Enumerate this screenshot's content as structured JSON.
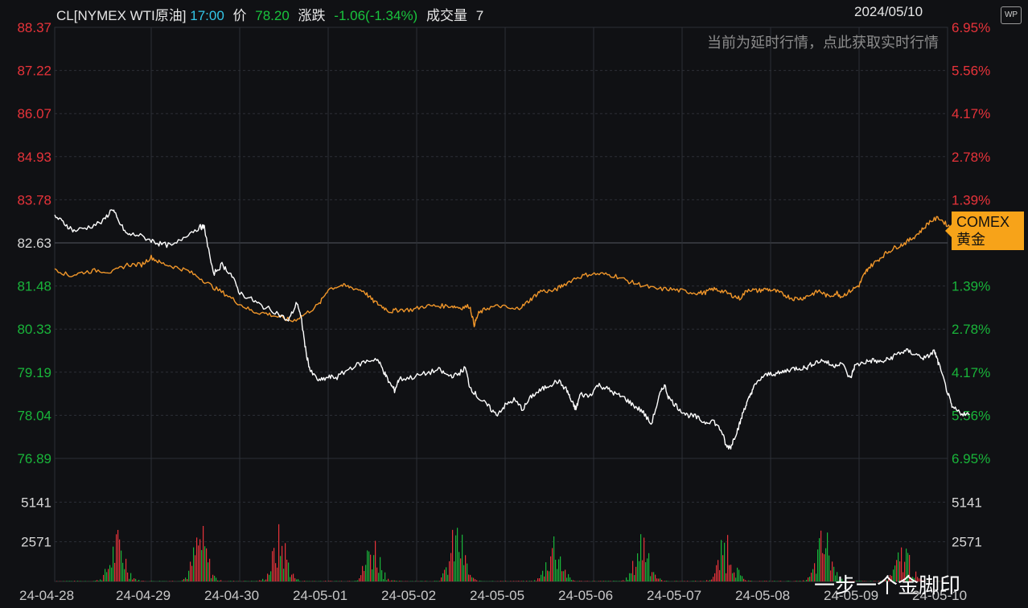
{
  "header": {
    "symbol": "CL[NYMEX WTI原油]",
    "time": "17:00",
    "price_label": "价",
    "price": "78.20",
    "change_label": "涨跌",
    "change": "-1.06(-1.34%)",
    "volume_label": "成交量",
    "volume": "7",
    "date": "2024/05/10",
    "icon": "wp-icon"
  },
  "notice": "当前为延时行情，点此获取实时行情",
  "compare_tag": {
    "line1": "COMEX",
    "line2": "黄金"
  },
  "watermark": "一步一个金脚印",
  "colors": {
    "up": "#e8333a",
    "down": "#19b53a",
    "price_line": "#ffffff",
    "compare_line": "#f0962a",
    "background": "#101114",
    "grid": "#2c2f36"
  },
  "chart_data": {
    "type": "line",
    "grid": true,
    "ylim": [
      76.89,
      88.37
    ],
    "left_ticks": [
      "88.37",
      "87.22",
      "86.07",
      "84.93",
      "83.78",
      "82.63",
      "81.48",
      "80.33",
      "79.19",
      "78.04",
      "76.89"
    ],
    "right_ticks": [
      "6.95%",
      "5.56%",
      "4.17%",
      "2.78%",
      "1.39%",
      "",
      "1.39%",
      "2.78%",
      "4.17%",
      "5.56%",
      "6.95%"
    ],
    "reference_price": 82.63,
    "x_labels": [
      "24-04-28",
      "24-04-29",
      "24-04-30",
      "24-05-01",
      "24-05-02",
      "24-05-05",
      "24-05-06",
      "24-05-07",
      "24-05-08",
      "24-05-09",
      "24-05-10"
    ],
    "series": [
      {
        "name": "CL[NYMEX WTI原油]",
        "color": "#ffffff",
        "points": [
          [
            0,
            83.35
          ],
          [
            0.1,
            83.15
          ],
          [
            0.2,
            82.95
          ],
          [
            0.35,
            83.05
          ],
          [
            0.5,
            83.2
          ],
          [
            0.6,
            83.55
          ],
          [
            0.65,
            83.25
          ],
          [
            0.75,
            82.85
          ],
          [
            0.85,
            82.85
          ],
          [
            1.0,
            82.7
          ],
          [
            1.1,
            82.6
          ],
          [
            1.25,
            82.55
          ],
          [
            1.4,
            82.85
          ],
          [
            1.55,
            83.05
          ],
          [
            1.6,
            83.05
          ],
          [
            1.7,
            81.8
          ],
          [
            1.8,
            82.05
          ],
          [
            1.9,
            81.8
          ],
          [
            2.0,
            81.3
          ],
          [
            2.15,
            81.1
          ],
          [
            2.25,
            80.95
          ],
          [
            2.4,
            80.8
          ],
          [
            2.55,
            80.55
          ],
          [
            2.65,
            81.05
          ],
          [
            2.7,
            80.55
          ],
          [
            2.75,
            79.7
          ],
          [
            2.8,
            79.2
          ],
          [
            2.9,
            78.95
          ],
          [
            3.0,
            79.05
          ],
          [
            3.1,
            79.05
          ],
          [
            3.25,
            79.3
          ],
          [
            3.4,
            79.45
          ],
          [
            3.55,
            79.55
          ],
          [
            3.62,
            79.25
          ],
          [
            3.68,
            78.95
          ],
          [
            3.75,
            78.7
          ],
          [
            3.8,
            79.0
          ],
          [
            3.95,
            79.05
          ],
          [
            4.1,
            79.15
          ],
          [
            4.25,
            79.25
          ],
          [
            4.35,
            79.1
          ],
          [
            4.45,
            79.1
          ],
          [
            4.55,
            79.3
          ],
          [
            4.6,
            78.8
          ],
          [
            4.7,
            78.5
          ],
          [
            4.8,
            78.3
          ],
          [
            4.9,
            78.05
          ],
          [
            5.0,
            78.3
          ],
          [
            5.1,
            78.45
          ],
          [
            5.2,
            78.2
          ],
          [
            5.3,
            78.55
          ],
          [
            5.4,
            78.7
          ],
          [
            5.5,
            78.85
          ],
          [
            5.6,
            78.95
          ],
          [
            5.7,
            78.7
          ],
          [
            5.75,
            78.4
          ],
          [
            5.8,
            78.2
          ],
          [
            5.85,
            78.6
          ],
          [
            5.95,
            78.55
          ],
          [
            6.05,
            78.85
          ],
          [
            6.15,
            78.75
          ],
          [
            6.25,
            78.6
          ],
          [
            6.35,
            78.5
          ],
          [
            6.45,
            78.3
          ],
          [
            6.55,
            78.15
          ],
          [
            6.65,
            77.8
          ],
          [
            6.75,
            78.6
          ],
          [
            6.8,
            78.85
          ],
          [
            6.85,
            78.5
          ],
          [
            6.95,
            78.25
          ],
          [
            7.05,
            78.05
          ],
          [
            7.15,
            78.0
          ],
          [
            7.25,
            77.85
          ],
          [
            7.35,
            77.9
          ],
          [
            7.45,
            77.6
          ],
          [
            7.5,
            77.2
          ],
          [
            7.55,
            77.2
          ],
          [
            7.6,
            77.5
          ],
          [
            7.65,
            77.8
          ],
          [
            7.7,
            78.2
          ],
          [
            7.75,
            78.45
          ],
          [
            7.8,
            78.75
          ],
          [
            7.9,
            79.05
          ],
          [
            8.0,
            79.15
          ],
          [
            8.1,
            79.15
          ],
          [
            8.2,
            79.25
          ],
          [
            8.3,
            79.3
          ],
          [
            8.4,
            79.3
          ],
          [
            8.5,
            79.45
          ],
          [
            8.6,
            79.5
          ],
          [
            8.7,
            79.35
          ],
          [
            8.8,
            79.45
          ],
          [
            8.9,
            79.0
          ],
          [
            8.95,
            79.35
          ],
          [
            9.05,
            79.45
          ],
          [
            9.15,
            79.5
          ],
          [
            9.25,
            79.45
          ],
          [
            9.35,
            79.55
          ],
          [
            9.45,
            79.7
          ],
          [
            9.55,
            79.75
          ],
          [
            9.65,
            79.65
          ],
          [
            9.75,
            79.55
          ],
          [
            9.85,
            79.75
          ],
          [
            9.9,
            79.4
          ],
          [
            10.0,
            78.65
          ],
          [
            10.05,
            78.25
          ],
          [
            10.15,
            78.1
          ],
          [
            10.25,
            78.05
          ]
        ]
      },
      {
        "name": "COMEX黄金",
        "color": "#f0962a",
        "points": [
          [
            0,
            81.95
          ],
          [
            0.15,
            81.75
          ],
          [
            0.3,
            81.85
          ],
          [
            0.45,
            81.9
          ],
          [
            0.6,
            81.85
          ],
          [
            0.75,
            82.05
          ],
          [
            0.9,
            82.05
          ],
          [
            1.0,
            82.25
          ],
          [
            1.1,
            82.1
          ],
          [
            1.25,
            82.0
          ],
          [
            1.4,
            81.9
          ],
          [
            1.55,
            81.7
          ],
          [
            1.7,
            81.45
          ],
          [
            1.85,
            81.25
          ],
          [
            2.0,
            81.0
          ],
          [
            2.15,
            80.8
          ],
          [
            2.3,
            80.75
          ],
          [
            2.45,
            80.65
          ],
          [
            2.6,
            80.55
          ],
          [
            2.75,
            80.75
          ],
          [
            2.9,
            81.0
          ],
          [
            3.0,
            81.4
          ],
          [
            3.15,
            81.5
          ],
          [
            3.25,
            81.45
          ],
          [
            3.4,
            81.35
          ],
          [
            3.5,
            81.1
          ],
          [
            3.6,
            80.95
          ],
          [
            3.7,
            80.8
          ],
          [
            3.8,
            80.85
          ],
          [
            3.95,
            80.85
          ],
          [
            4.1,
            80.95
          ],
          [
            4.25,
            80.95
          ],
          [
            4.4,
            80.95
          ],
          [
            4.5,
            80.9
          ],
          [
            4.6,
            80.95
          ],
          [
            4.65,
            80.45
          ],
          [
            4.7,
            80.75
          ],
          [
            4.8,
            80.9
          ],
          [
            4.95,
            80.95
          ],
          [
            5.1,
            80.85
          ],
          [
            5.2,
            80.95
          ],
          [
            5.3,
            81.15
          ],
          [
            5.4,
            81.35
          ],
          [
            5.55,
            81.35
          ],
          [
            5.65,
            81.5
          ],
          [
            5.8,
            81.7
          ],
          [
            5.95,
            81.8
          ],
          [
            6.1,
            81.8
          ],
          [
            6.25,
            81.75
          ],
          [
            6.4,
            81.6
          ],
          [
            6.55,
            81.5
          ],
          [
            6.7,
            81.4
          ],
          [
            6.85,
            81.4
          ],
          [
            7.0,
            81.35
          ],
          [
            7.15,
            81.3
          ],
          [
            7.25,
            81.3
          ],
          [
            7.35,
            81.4
          ],
          [
            7.45,
            81.35
          ],
          [
            7.55,
            81.25
          ],
          [
            7.65,
            81.15
          ],
          [
            7.75,
            81.4
          ],
          [
            7.85,
            81.35
          ],
          [
            7.95,
            81.4
          ],
          [
            8.05,
            81.35
          ],
          [
            8.15,
            81.25
          ],
          [
            8.25,
            81.15
          ],
          [
            8.35,
            81.15
          ],
          [
            8.45,
            81.25
          ],
          [
            8.55,
            81.35
          ],
          [
            8.65,
            81.2
          ],
          [
            8.75,
            81.3
          ],
          [
            8.8,
            81.2
          ],
          [
            8.9,
            81.35
          ],
          [
            9.0,
            81.5
          ],
          [
            9.05,
            81.75
          ],
          [
            9.1,
            81.95
          ],
          [
            9.2,
            82.15
          ],
          [
            9.3,
            82.35
          ],
          [
            9.4,
            82.5
          ],
          [
            9.5,
            82.6
          ],
          [
            9.6,
            82.75
          ],
          [
            9.7,
            82.95
          ],
          [
            9.8,
            83.2
          ],
          [
            9.9,
            83.3
          ],
          [
            10.0,
            83.1
          ],
          [
            10.1,
            82.95
          ],
          [
            10.2,
            83.05
          ],
          [
            10.25,
            82.9
          ]
        ]
      }
    ],
    "volume": {
      "ticks": [
        "5141",
        "2571"
      ],
      "max": 7712,
      "peaks": [
        {
          "day": 0,
          "center": 0.65,
          "height": 3200
        },
        {
          "day": 1,
          "center": 0.55,
          "height": 3600
        },
        {
          "day": 2,
          "center": 0.45,
          "height": 3500
        },
        {
          "day": 3,
          "center": 0.5,
          "height": 3100
        },
        {
          "day": 4,
          "center": 0.45,
          "height": 3800
        },
        {
          "day": 5,
          "center": 0.55,
          "height": 3300
        },
        {
          "day": 6,
          "center": 0.55,
          "height": 3600
        },
        {
          "day": 7,
          "center": 0.5,
          "height": 3400
        },
        {
          "day": 8,
          "center": 0.6,
          "height": 3500
        },
        {
          "day": 9,
          "center": 0.5,
          "height": 2600
        },
        {
          "day": 10,
          "center": 0.45,
          "height": 3000
        }
      ]
    }
  }
}
